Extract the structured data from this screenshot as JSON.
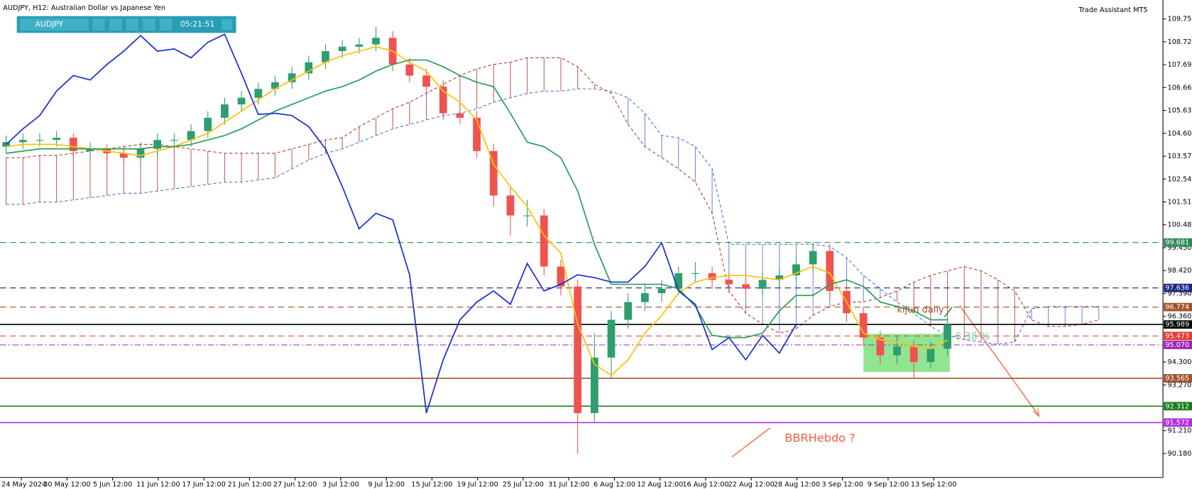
{
  "toolbar": {
    "symbol": "AUDJPY",
    "time": "05:21:51"
  },
  "assistant": "Trade Assistant MT5",
  "chart_data": {
    "type": "candlestick",
    "title": "AUDJPY, H12:  Australian Dollar vs Japanese Yen",
    "x_labels": [
      "24 May 2024",
      "30 May 12:00",
      "5 Jun 12:00",
      "11 Jun 12:00",
      "17 Jun 12:00",
      "21 Jun 12:00",
      "27 Jun 12:00",
      "3 Jul 12:00",
      "9 Jul 12:00",
      "15 Jul 12:00",
      "19 Jul 12:00",
      "25 Jul 12:00",
      "31 Jul 12:00",
      "6 Aug 12:00",
      "12 Aug 12:00",
      "16 Aug 12:00",
      "22 Aug 12:00",
      "28 Aug 12:00",
      "3 Sep 12:00",
      "9 Sep 12:00",
      "13 Sep 12:00"
    ],
    "ylim": [
      89.1,
      110.6
    ],
    "yticks": [
      {
        "value": 109.75,
        "label": "109.750"
      },
      {
        "value": 108.72,
        "label": "108.720"
      },
      {
        "value": 107.69,
        "label": "107.690"
      },
      {
        "value": 106.66,
        "label": "106.660"
      },
      {
        "value": 105.63,
        "label": "105.630"
      },
      {
        "value": 104.6,
        "label": "104.600"
      },
      {
        "value": 103.57,
        "label": "103.570"
      },
      {
        "value": 102.54,
        "label": "102.540"
      },
      {
        "value": 101.51,
        "label": "101.510"
      },
      {
        "value": 100.48,
        "label": "100.480"
      },
      {
        "value": 99.45,
        "label": "99.450"
      },
      {
        "value": 98.42,
        "label": "98.420"
      },
      {
        "value": 97.39,
        "label": "97.390"
      },
      {
        "value": 96.36,
        "label": "96.360"
      },
      {
        "value": 94.3,
        "label": "94.300"
      },
      {
        "value": 93.27,
        "label": "93.270"
      },
      {
        "value": 91.21,
        "label": "91.210"
      },
      {
        "value": 90.18,
        "label": "90.180"
      }
    ],
    "up_color": "#2e9d6f",
    "down_color": "#ef5350",
    "open": [
      104.0,
      104.2,
      104.3,
      104.3,
      104.4,
      103.8,
      103.9,
      103.7,
      103.5,
      103.9,
      104.3,
      104.3,
      104.7,
      105.3,
      105.9,
      106.2,
      106.6,
      106.9,
      107.3,
      107.8,
      108.3,
      108.5,
      108.6,
      108.9,
      107.7,
      107.2,
      106.7,
      105.5,
      105.3,
      103.8,
      101.8,
      100.9,
      100.9,
      98.6,
      97.7,
      92.0,
      94.5,
      96.2,
      97.0,
      97.4,
      97.6,
      98.3,
      98.3,
      98.0,
      97.8,
      97.6,
      98.0,
      98.2,
      98.7,
      99.3,
      97.5,
      96.5,
      95.4,
      94.6,
      95.0,
      94.3,
      94.9
    ],
    "high": [
      104.5,
      104.6,
      104.6,
      104.7,
      104.6,
      104.2,
      104.1,
      104.0,
      104.2,
      104.6,
      104.6,
      105.0,
      105.6,
      106.2,
      106.5,
      106.9,
      107.2,
      107.6,
      108.1,
      108.6,
      108.8,
      108.9,
      109.4,
      109.2,
      108.0,
      107.5,
      107.0,
      105.9,
      105.6,
      104.1,
      102.2,
      101.6,
      101.2,
      98.9,
      98.0,
      95.6,
      96.6,
      97.4,
      97.8,
      98.0,
      98.6,
      98.8,
      98.6,
      98.3,
      98.1,
      98.3,
      98.5,
      99.0,
      99.7,
      99.6,
      97.8,
      96.8,
      95.7,
      95.5,
      95.3,
      95.2,
      96.3
    ],
    "low": [
      103.7,
      103.9,
      104.0,
      104.0,
      103.5,
      103.5,
      103.4,
      103.2,
      103.2,
      103.6,
      104.0,
      104.0,
      104.4,
      105.0,
      105.6,
      105.9,
      106.3,
      106.6,
      107.0,
      107.5,
      108.0,
      108.2,
      108.3,
      107.4,
      106.9,
      106.4,
      105.2,
      105.0,
      103.5,
      101.3,
      100.0,
      100.4,
      98.2,
      97.3,
      90.15,
      91.6,
      93.6,
      95.8,
      96.6,
      97.0,
      97.3,
      97.9,
      97.6,
      97.4,
      97.2,
      97.3,
      97.7,
      97.9,
      98.4,
      97.1,
      96.1,
      95.0,
      94.2,
      94.2,
      93.6,
      94.0,
      94.6
    ],
    "close": [
      104.2,
      104.3,
      104.3,
      104.4,
      103.8,
      103.9,
      103.7,
      103.5,
      103.9,
      104.3,
      104.3,
      104.7,
      105.3,
      105.9,
      106.2,
      106.6,
      106.9,
      107.3,
      107.8,
      108.3,
      108.5,
      108.6,
      108.9,
      107.7,
      107.2,
      106.7,
      105.5,
      105.3,
      103.8,
      101.8,
      100.9,
      100.9,
      98.6,
      97.7,
      92.0,
      94.5,
      96.2,
      97.0,
      97.4,
      97.6,
      98.3,
      98.3,
      98.0,
      97.8,
      97.6,
      98.0,
      98.2,
      98.7,
      99.3,
      97.5,
      96.5,
      95.4,
      94.6,
      95.0,
      94.3,
      94.9,
      95.989
    ],
    "series": [
      {
        "color": "#ffc107",
        "values": [
          104.0,
          104.1,
          104.1,
          104.1,
          104.0,
          103.9,
          103.8,
          103.7,
          103.6,
          103.8,
          104.0,
          104.3,
          104.6,
          105.1,
          105.6,
          106.1,
          106.6,
          107.0,
          107.4,
          107.8,
          108.1,
          108.3,
          108.5,
          108.3,
          107.8,
          107.4,
          106.5,
          106.0,
          105.2,
          103.2,
          102.2,
          101.3,
          100.0,
          99.2,
          96.0,
          94.2,
          93.7,
          94.4,
          95.6,
          96.4,
          97.4,
          97.9,
          98.1,
          98.2,
          98.2,
          98.1,
          98.0,
          98.3,
          98.6,
          98.3,
          97.0,
          95.6,
          95.3,
          95.2,
          95.0,
          94.9,
          95.3
        ]
      },
      {
        "color": "#2e9e58",
        "values": [
          103.7,
          103.8,
          103.9,
          103.9,
          103.9,
          103.9,
          103.9,
          103.9,
          103.9,
          104.0,
          104.0,
          104.1,
          104.3,
          104.5,
          104.8,
          105.2,
          105.6,
          105.9,
          106.2,
          106.5,
          106.7,
          107.0,
          107.4,
          107.7,
          107.9,
          107.9,
          107.6,
          107.2,
          106.9,
          106.7,
          105.5,
          104.2,
          104.0,
          103.5,
          102.0,
          99.6,
          97.8,
          97.8,
          97.8,
          97.8,
          97.6,
          96.8,
          95.5,
          95.4,
          95.4,
          95.6,
          96.6,
          97.3,
          97.3,
          97.8,
          98.0,
          97.7,
          97.0,
          96.8,
          96.6,
          96.2,
          96.2
        ]
      },
      {
        "color": "#1a2fd6",
        "values": [
          104.1,
          104.8,
          105.4,
          106.5,
          107.2,
          107.0,
          107.7,
          108.3,
          109.0,
          108.3,
          108.4,
          108.0,
          108.7,
          109.06,
          107.3,
          105.45,
          105.5,
          105.4,
          104.9,
          103.9,
          102.2,
          100.3,
          101.0,
          100.7,
          98.23,
          92.0,
          94.4,
          96.2,
          97.0,
          97.5,
          96.9,
          98.74,
          97.5,
          97.8,
          98.23,
          98.1,
          97.9,
          97.9,
          98.6,
          99.67,
          97.5,
          96.9,
          94.86,
          95.4,
          94.4,
          95.5,
          94.7,
          96.0,
          null,
          null,
          null,
          null,
          null,
          null,
          null,
          null,
          null
        ]
      }
    ],
    "cloud": {
      "up_color": "#4a6fd8",
      "down_color": "#b03a2e",
      "span_a": [
        101.4,
        101.4,
        101.5,
        101.5,
        101.6,
        101.7,
        101.8,
        101.9,
        101.9,
        102.0,
        102.1,
        102.2,
        102.3,
        102.4,
        102.4,
        102.5,
        102.6,
        103.0,
        103.4,
        103.7,
        103.9,
        104.2,
        104.5,
        104.8,
        105.0,
        105.2,
        105.4,
        105.5,
        105.7,
        106.0,
        106.2,
        106.4,
        106.5,
        106.5,
        106.6,
        106.6,
        106.5,
        106.2,
        105.5,
        104.5,
        104.4,
        104.0,
        103.0,
        99.6,
        99.6,
        99.6,
        99.6,
        99.6,
        99.6,
        99.5,
        99.0,
        98.2,
        97.6,
        97.0,
        96.5,
        95.9,
        95.5,
        95.3,
        95.2,
        95.1,
        95.2,
        96.7,
        96.8,
        96.8,
        96.8,
        96.8
      ],
      "span_b": [
        103.5,
        103.5,
        103.6,
        103.6,
        103.7,
        103.8,
        103.9,
        104.0,
        104.1,
        104.1,
        104.0,
        103.9,
        103.8,
        103.7,
        103.7,
        103.7,
        103.7,
        103.9,
        104.1,
        104.3,
        104.4,
        104.9,
        105.3,
        105.7,
        106.0,
        106.4,
        106.8,
        107.2,
        107.5,
        107.7,
        107.8,
        108.0,
        108.0,
        108.0,
        107.6,
        106.8,
        106.4,
        105.0,
        104.0,
        103.5,
        103.0,
        102.4,
        101.0,
        97.5,
        96.5,
        96.0,
        95.6,
        95.8,
        96.4,
        96.8,
        97.0,
        97.0,
        97.2,
        97.5,
        97.9,
        98.2,
        98.4,
        98.6,
        98.4,
        98.0,
        97.5,
        96.2,
        95.9,
        95.9,
        96.0,
        96.2
      ]
    },
    "levels": [
      {
        "price": 99.681,
        "color": "#2e8b57",
        "dash": "dashed"
      },
      {
        "price": 97.636,
        "color": "#1a237e",
        "dash": "dashed"
      },
      {
        "price": 96.774,
        "color": "#a0522d",
        "dash": "dashed"
      },
      {
        "price": 95.989,
        "color": "#000000",
        "dash": "solid"
      },
      {
        "price": 95.473,
        "color": "#e53935",
        "dash": "dashed"
      },
      {
        "price": {
          "value": 95.07,
          "label": "95.070"
        },
        "color": "#9c27b0",
        "dash": "dashdot"
      },
      {
        "price": 93.565,
        "color": "#a0522d",
        "dash": "solid"
      },
      {
        "price": 92.312,
        "color": "#1b7a1b",
        "dash": "solid"
      },
      {
        "price": 91.572,
        "color": "#b02ee0",
        "dash": "solid"
      }
    ],
    "annotations": {
      "kijun": "kijun daily",
      "percent": "6.38 %",
      "bbr": "BBRHebdo ?"
    }
  }
}
